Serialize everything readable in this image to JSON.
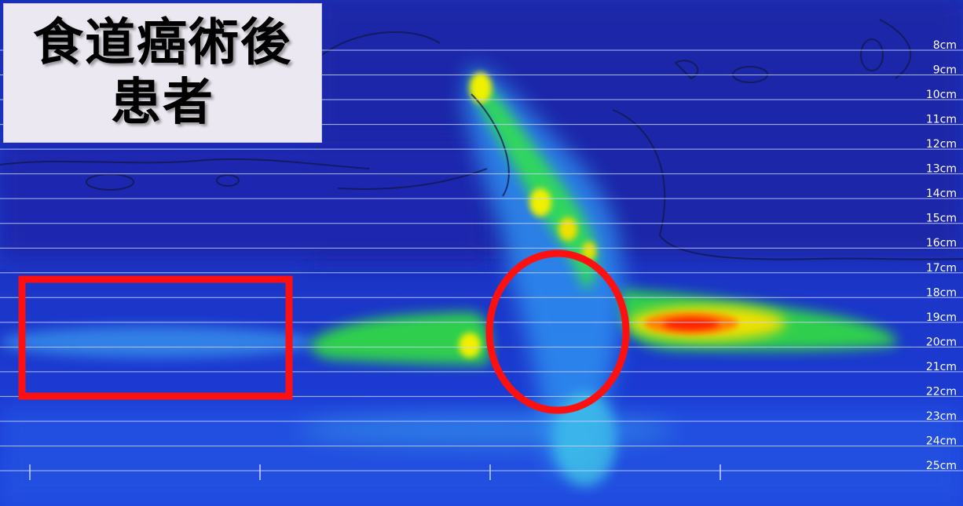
{
  "title": {
    "line1": "食道癌術後",
    "line2": "患者"
  },
  "chart_data": {
    "type": "heatmap",
    "y_unit": "cm",
    "depth_labels": [
      "8cm",
      "9cm",
      "10cm",
      "11cm",
      "12cm",
      "13cm",
      "14cm",
      "15cm",
      "16cm",
      "17cm",
      "18cm",
      "19cm",
      "20cm",
      "21cm",
      "22cm",
      "23cm",
      "24cm",
      "25cm"
    ],
    "ylim": [
      8,
      25
    ],
    "grid": true,
    "colormap": [
      "#1f2fc8",
      "#2f8ff0",
      "#40e0c0",
      "#30e030",
      "#f0f000",
      "#ff2000"
    ],
    "annotations": [
      {
        "shape": "rectangle",
        "color": "#ff1010"
      },
      {
        "shape": "ellipse",
        "color": "#ff1010"
      }
    ]
  }
}
